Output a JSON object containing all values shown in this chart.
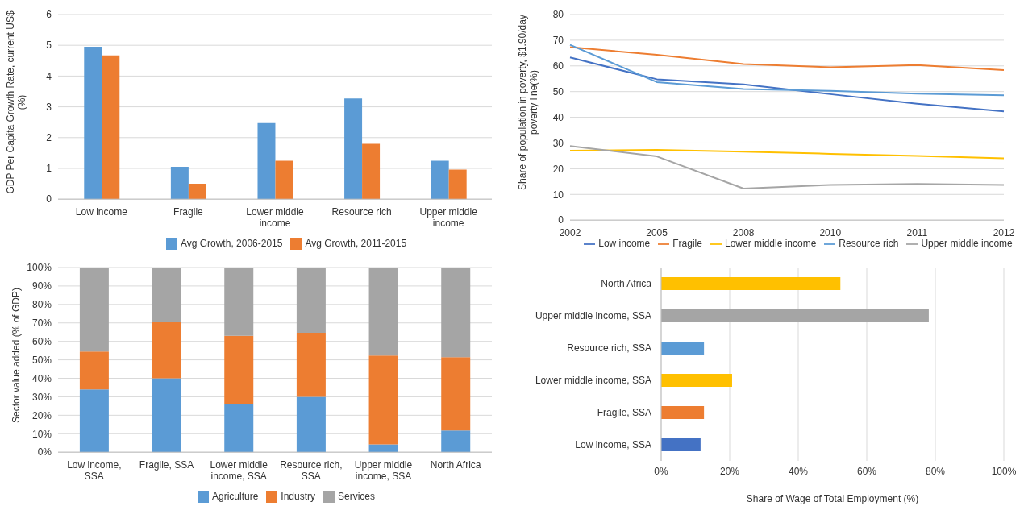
{
  "chart_data": [
    {
      "type": "bar",
      "ylabel": "GDP Per Capita Growth Rate, current US$ (%)",
      "categories": [
        "Low income",
        "Fragile",
        "Lower middle income",
        "Resource rich",
        "Upper middle income"
      ],
      "series": [
        {
          "name": "Avg Growth, 2006-2015",
          "color": "#5b9bd5",
          "values": [
            4.95,
            1.05,
            2.47,
            3.27,
            1.25
          ]
        },
        {
          "name": "Avg Growth, 2011-2015",
          "color": "#ed7d31",
          "values": [
            4.67,
            0.5,
            1.25,
            1.8,
            0.96
          ]
        }
      ],
      "ylim": [
        0,
        6
      ],
      "yticks": [
        0,
        1,
        2,
        3,
        4,
        5,
        6
      ],
      "grid": "y",
      "legend": "bottom"
    },
    {
      "type": "line",
      "ylabel": "Share of population in poverty, $1.90/day poverty line(%)",
      "categories": [
        "2002",
        "2005",
        "2008",
        "2010",
        "2011",
        "2012"
      ],
      "series": [
        {
          "name": "Low income",
          "color": "#4472c4",
          "values": [
            63.3,
            54.8,
            52.8,
            49,
            45.3,
            42.3
          ]
        },
        {
          "name": "Fragile",
          "color": "#ed7d31",
          "values": [
            67.3,
            64.3,
            60.7,
            59.5,
            60.3,
            58.4
          ]
        },
        {
          "name": "Lower middle income",
          "color": "#ffc000",
          "values": [
            27,
            27.3,
            26.6,
            25.8,
            25,
            24
          ]
        },
        {
          "name": "Resource rich",
          "color": "#5b9bd5",
          "values": [
            68.2,
            53.7,
            51,
            50.3,
            49.2,
            48.6
          ]
        },
        {
          "name": "Upper middle income",
          "color": "#a5a5a5",
          "values": [
            28.8,
            24.8,
            12.3,
            13.7,
            14.1,
            13.7
          ]
        }
      ],
      "ylim": [
        0,
        80
      ],
      "yticks": [
        0,
        10,
        20,
        30,
        40,
        50,
        60,
        70,
        80
      ],
      "grid": "y",
      "legend": "bottom",
      "marker": "none",
      "line_style": "solid"
    },
    {
      "type": "bar",
      "stacked": true,
      "ylabel": "Sector value added (% of GDP)",
      "categories": [
        "Low income, SSA",
        "Fragile, SSA",
        "Lower middle income, SSA",
        "Resource rich, SSA",
        "Upper middle income, SSA",
        "North Africa"
      ],
      "series": [
        {
          "name": "Agriculture",
          "color": "#5b9bd5",
          "values": [
            34,
            40,
            25.8,
            30,
            4.2,
            11.8
          ]
        },
        {
          "name": "Industry",
          "color": "#ed7d31",
          "values": [
            20.5,
            30.3,
            37.2,
            34.7,
            48.1,
            39.7
          ]
        },
        {
          "name": "Services",
          "color": "#a5a5a5",
          "values": [
            45.5,
            29.7,
            37,
            35.3,
            47.7,
            48.5
          ]
        }
      ],
      "ylim": [
        0,
        100
      ],
      "yticks": [
        {
          "value": 0,
          "label": "0%"
        },
        {
          "value": 10,
          "label": "10%"
        },
        {
          "value": 20,
          "label": "20%"
        },
        {
          "value": 30,
          "label": "30%"
        },
        {
          "value": 40,
          "label": "40%"
        },
        {
          "value": 50,
          "label": "50%"
        },
        {
          "value": 60,
          "label": "60%"
        },
        {
          "value": 70,
          "label": "70%"
        },
        {
          "value": 80,
          "label": "80%"
        },
        {
          "value": 90,
          "label": "90%"
        },
        {
          "value": 100,
          "label": "100%"
        }
      ],
      "grid": "y",
      "legend": "bottom"
    },
    {
      "type": "bar",
      "orientation": "horizontal",
      "xlabel": "Share of Wage of Total Employment (%)",
      "categories": [
        "North Africa",
        "Upper middle income, SSA",
        "Resource rich, SSA",
        "Lower middle income, SSA",
        "Fragile, SSA",
        "Low income, SSA"
      ],
      "values": [
        52.3,
        78.1,
        12.5,
        20.7,
        12.5,
        11.5
      ],
      "colors": [
        "#ffc000",
        "#a5a5a5",
        "#5b9bd5",
        "#ffc000",
        "#ed7d31",
        "#4472c4"
      ],
      "xlim": [
        0,
        100
      ],
      "xticks": [
        {
          "value": 0,
          "label": "0%"
        },
        {
          "value": 20,
          "label": "20%"
        },
        {
          "value": 40,
          "label": "40%"
        },
        {
          "value": 60,
          "label": "60%"
        },
        {
          "value": 80,
          "label": "80%"
        },
        {
          "value": 100,
          "label": "100%"
        }
      ],
      "grid": "x"
    }
  ]
}
